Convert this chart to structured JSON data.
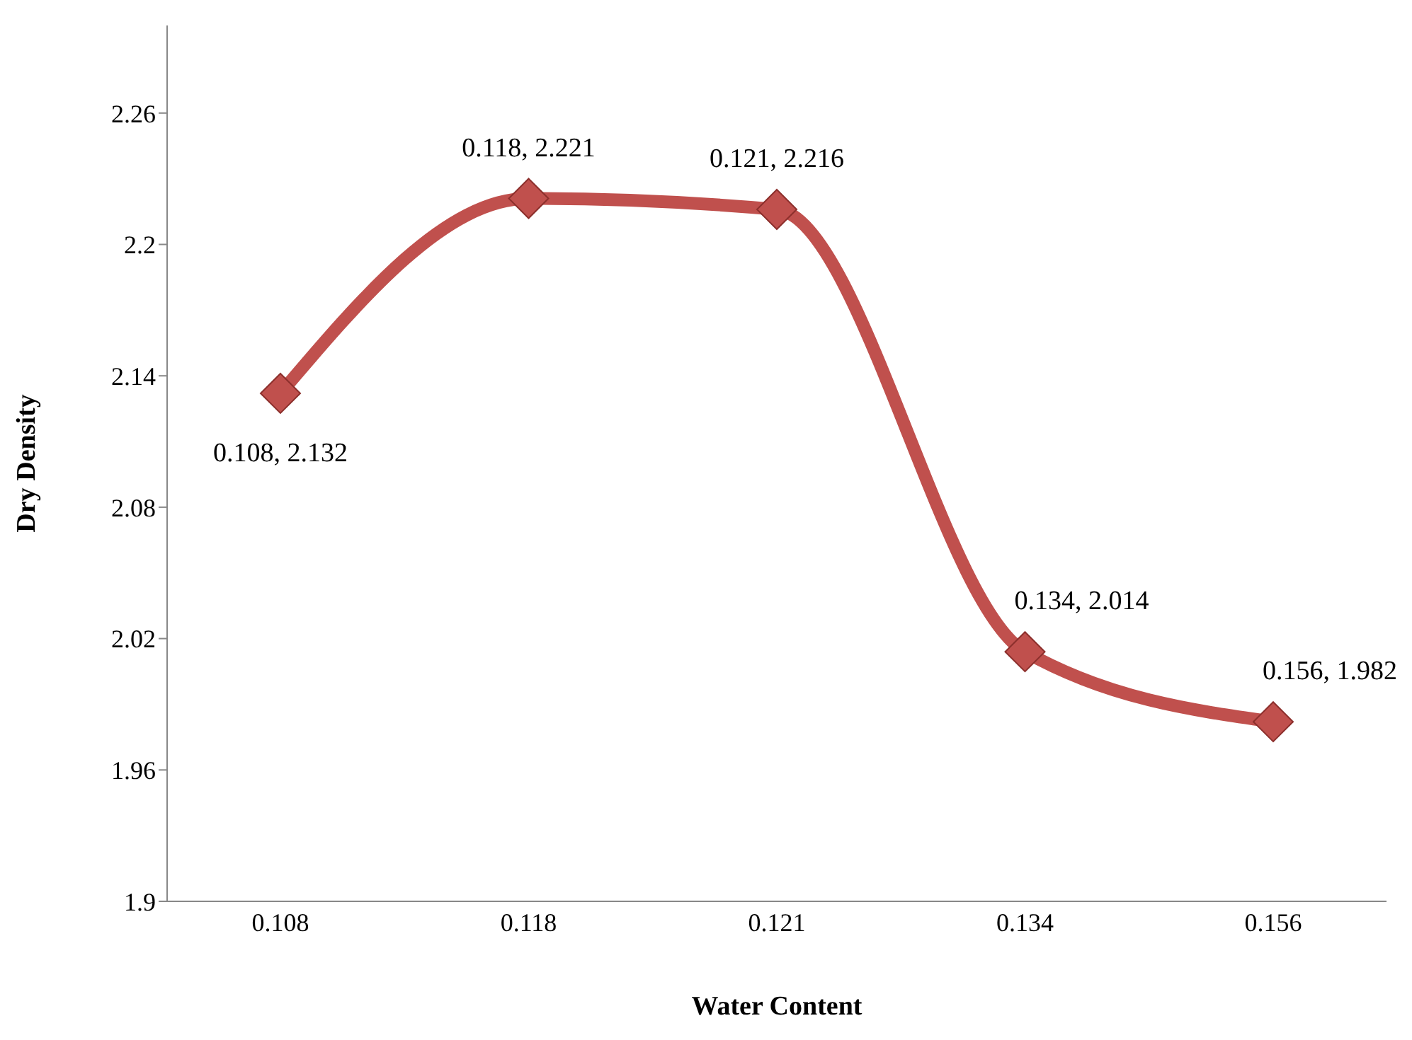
{
  "chart_data": {
    "type": "line",
    "xlabel": "Water Content",
    "ylabel": "Dry Density",
    "categories": [
      "0.108",
      "0.118",
      "0.121",
      "0.134",
      "0.156"
    ],
    "series": [
      {
        "color": "#c0504d",
        "values": [
          2.132,
          2.221,
          2.216,
          2.014,
          1.982
        ],
        "value_labels": [
          "0.108, 2.132",
          "0.118, 2.221",
          "0.121, 2.216",
          "0.134, 2.014",
          "0.156, 1.982"
        ]
      }
    ],
    "ylim": [
      1.9,
      2.3
    ],
    "yticks": [
      1.9,
      1.96,
      2.02,
      2.08,
      2.14,
      2.2,
      2.26
    ],
    "grid": false,
    "legend": false,
    "marker": "diamond",
    "line_style": "solid"
  }
}
